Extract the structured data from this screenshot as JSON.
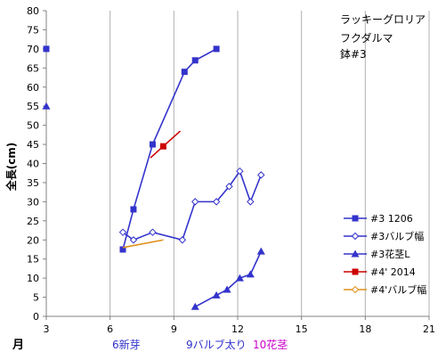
{
  "chart_data": {
    "type": "line",
    "title_lines": [
      "ラッキーグロリア",
      "フクダルマ",
      "鉢#3"
    ],
    "ylabel": "全長(cm)",
    "xlabel": "月",
    "xlim": [
      3,
      21
    ],
    "ylim": [
      0,
      80
    ],
    "x_ticks": [
      3,
      6,
      9,
      12,
      15,
      18,
      21
    ],
    "y_ticks": [
      0,
      5,
      10,
      15,
      20,
      25,
      30,
      35,
      40,
      45,
      50,
      55,
      60,
      65,
      70,
      75,
      80
    ],
    "grid": "vertical",
    "legend_position": "right",
    "series": [
      {
        "name": "#3 1206",
        "color": "#3333cc",
        "marker": "square",
        "points": [
          [
            6.6,
            17.5
          ],
          [
            7.1,
            28
          ],
          [
            8.0,
            45
          ],
          [
            9.5,
            64
          ],
          [
            10.0,
            67
          ],
          [
            11.0,
            70
          ]
        ]
      },
      {
        "name": "#3バルブ幅",
        "color": "#3333cc",
        "marker": "diamond-open",
        "points": [
          [
            6.6,
            22
          ],
          [
            7.1,
            20
          ],
          [
            8.0,
            22
          ],
          [
            9.4,
            20
          ],
          [
            10.0,
            30
          ],
          [
            11.0,
            30
          ],
          [
            11.6,
            34
          ],
          [
            12.1,
            38
          ],
          [
            12.6,
            30
          ],
          [
            13.1,
            37
          ]
        ]
      },
      {
        "name": "#3花茎L",
        "color": "#3333cc",
        "marker": "triangle",
        "points": [
          [
            10.0,
            2.5
          ],
          [
            11.0,
            5.5
          ],
          [
            11.5,
            7
          ],
          [
            12.1,
            10
          ],
          [
            12.6,
            11
          ],
          [
            13.1,
            17
          ]
        ]
      },
      {
        "name": "#4' 2014",
        "color": "#cc0000",
        "marker": "square",
        "points": [
          [
            7.9,
            41.5
          ],
          [
            8.5,
            44.5
          ],
          [
            9.3,
            48.5
          ]
        ]
      },
      {
        "name": "#4'バルブ幅",
        "color": "#e0901a",
        "marker": "diamond-open",
        "points": [
          [
            6.6,
            18
          ],
          [
            8.5,
            20
          ]
        ]
      }
    ],
    "edge_markers": [
      {
        "x": 3,
        "y": 70,
        "marker": "square",
        "color": "#3333cc"
      },
      {
        "x": 3,
        "y": 55,
        "marker": "triangle",
        "color": "#3333cc"
      }
    ],
    "annotations": [
      {
        "text": "6新芽",
        "x": 6.0,
        "color": "#3333cc"
      },
      {
        "text": "9バルブ太り",
        "x": 9.0,
        "color": "#3333cc"
      },
      {
        "text": "10花茎",
        "x": 10.4,
        "color": "#cc00cc"
      }
    ]
  }
}
